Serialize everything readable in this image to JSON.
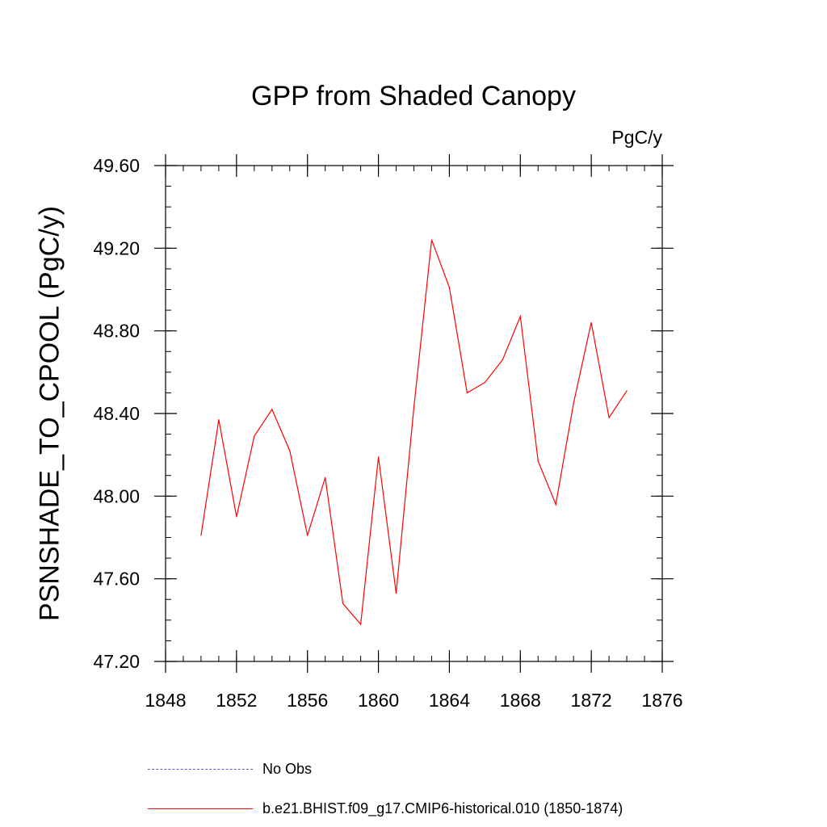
{
  "chart_data": {
    "type": "line",
    "title": "GPP from Shaded Canopy",
    "units": "PgC/y",
    "ylabel": "PSNSHADE_TO_CPOOL  (PgC/y)",
    "xlabel": "",
    "xlim": [
      1848,
      1876
    ],
    "ylim": [
      47.2,
      49.6
    ],
    "xticks": [
      1848,
      1852,
      1856,
      1860,
      1864,
      1868,
      1872,
      1876
    ],
    "xtick_labels": [
      "1848",
      "1852",
      "1856",
      "1860",
      "1864",
      "1868",
      "1872",
      "1876"
    ],
    "yticks": [
      47.2,
      47.6,
      48.0,
      48.4,
      48.8,
      49.2,
      49.6
    ],
    "ytick_labels": [
      "47.20",
      "47.60",
      "48.00",
      "48.40",
      "48.80",
      "49.20",
      "49.60"
    ],
    "x_minor_step": 1,
    "y_minor_step": 0.1,
    "series": [
      {
        "name": "b.e21.BHIST.f09_g17.CMIP6-historical.010 (1850-1874)",
        "color": "#ff0000",
        "style": "solid",
        "x": [
          1850,
          1851,
          1852,
          1853,
          1854,
          1855,
          1856,
          1857,
          1858,
          1859,
          1860,
          1861,
          1862,
          1863,
          1864,
          1865,
          1866,
          1867,
          1868,
          1869,
          1870,
          1871,
          1872,
          1873,
          1874
        ],
        "values": [
          47.81,
          48.37,
          47.9,
          48.29,
          48.42,
          48.22,
          47.81,
          48.09,
          47.48,
          47.38,
          48.19,
          47.53,
          48.43,
          49.24,
          49.01,
          48.5,
          48.55,
          48.66,
          48.87,
          48.17,
          47.96,
          48.45,
          48.84,
          48.38,
          48.51
        ]
      }
    ],
    "legend": [
      {
        "label": "No Obs",
        "color": "#6655cc",
        "style": "dashed"
      },
      {
        "label": "b.e21.BHIST.f09_g17.CMIP6-historical.010 (1850-1874)",
        "color": "#ff0000",
        "style": "solid"
      }
    ]
  }
}
